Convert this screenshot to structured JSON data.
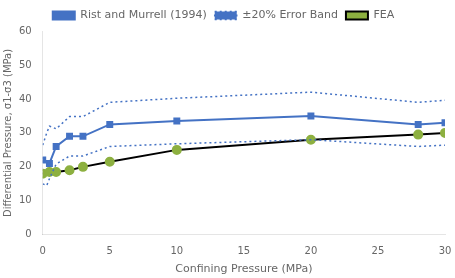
{
  "chart_data": {
    "type": "line",
    "x_label": "Confining Pressure (MPa)",
    "y_label": "Differential Pressure, σ1-σ3 (MPa)",
    "xlim": [
      0,
      30
    ],
    "ylim": [
      0,
      60
    ],
    "xticks": [
      0,
      5,
      10,
      15,
      20,
      25,
      30
    ],
    "yticks": [
      0,
      10,
      20,
      30,
      40,
      50,
      60
    ],
    "grid": false,
    "legend": "top",
    "series": [
      {
        "name": "Rist and Murrell (1994)",
        "color": "#4472C4",
        "marker": "square",
        "line_style": "solid",
        "x": [
          0.0,
          0.5,
          1.0,
          2.0,
          3.0,
          5.0,
          10.0,
          20.0,
          28.0,
          30.0
        ],
        "values": [
          22.0,
          21.0,
          26.0,
          29.0,
          29.0,
          32.5,
          33.5,
          35.0,
          32.5,
          33.0
        ]
      },
      {
        "name": "±20% Error Band",
        "color": "#4472C4",
        "line_style": "dotted",
        "x": [
          0.0,
          0.3,
          0.5,
          1.0,
          2.0,
          3.0,
          5.0,
          10.0,
          20.0,
          28.0,
          30.0
        ],
        "values": [
          26.4,
          30.0,
          32.0,
          31.2,
          34.8,
          34.8,
          39.0,
          40.2,
          42.0,
          39.0,
          39.6
        ]
      },
      {
        "name": "±20% Error Band",
        "color": "#4472C4",
        "line_style": "dotted",
        "x": [
          0.0,
          0.3,
          0.5,
          1.0,
          2.0,
          3.0,
          5.0,
          10.0,
          20.0,
          28.0,
          30.0
        ],
        "values": [
          15.0,
          14.5,
          16.5,
          20.8,
          23.2,
          23.2,
          26.0,
          26.8,
          28.0,
          26.0,
          26.4
        ]
      },
      {
        "name": "FEA",
        "color": "#000000",
        "marker": "circle",
        "line_style": "solid",
        "colors": [
          "#8DB040",
          "#8DB040",
          "#8DB040",
          "#8DB040",
          "#8DB040",
          "#8DB040",
          "#8DB040",
          "#8DB040",
          "#8DB040",
          "#8DB040"
        ],
        "x": [
          0.0,
          0.5,
          1.0,
          2.0,
          3.0,
          5.0,
          10.0,
          20.0,
          28.0,
          30.0
        ],
        "values": [
          18.0,
          18.5,
          18.5,
          19.0,
          20.0,
          21.5,
          25.0,
          28.0,
          29.5,
          30.0
        ]
      }
    ]
  }
}
